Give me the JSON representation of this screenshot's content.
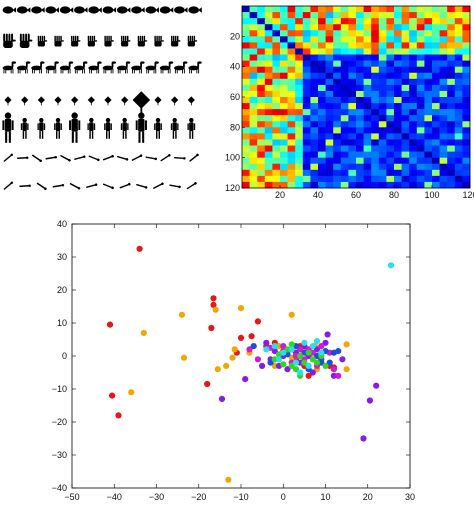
{
  "silhouettes": {
    "rows": [
      {
        "icon": "fish-icon",
        "color": "#000000"
      },
      {
        "icon": "hand-icon",
        "color": "#000000"
      },
      {
        "icon": "horse-icon",
        "color": "#000000"
      },
      {
        "icon": "leaf-icon",
        "color": "#000000"
      },
      {
        "icon": "person-icon",
        "color": "#000000"
      },
      {
        "icon": "stick-icon",
        "color": "#000000"
      },
      {
        "icon": "stick-icon",
        "color": "#000000"
      }
    ]
  },
  "chart_data": [
    {
      "type": "heatmap",
      "title": "",
      "xlabel": "",
      "ylabel": "",
      "size": 120,
      "xlim": [
        0,
        120
      ],
      "ylim": [
        0,
        120
      ],
      "xticks": [
        "20",
        "40",
        "60",
        "80",
        "100",
        "120"
      ],
      "yticks": [
        "20",
        "40",
        "60",
        "80",
        "100",
        "120"
      ],
      "colormap": "jet",
      "block_boundaries": [
        30
      ],
      "description_colors": {
        "low": "#00007f",
        "mid": "#00bfff",
        "high": "#ffff00"
      }
    },
    {
      "type": "scatter",
      "title": "",
      "xlabel": "",
      "ylabel": "",
      "xlim": [
        -50,
        30
      ],
      "ylim": [
        -40,
        40
      ],
      "xticks": [
        "−50",
        "−40",
        "−30",
        "−20",
        "−10",
        "0",
        "10",
        "20",
        "30"
      ],
      "yticks": [
        "−40",
        "−30",
        "−20",
        "−10",
        "0",
        "10",
        "20",
        "30",
        "40"
      ],
      "series": [
        {
          "color": "#e8161a",
          "points": [
            [
              -34,
              32.5
            ],
            [
              -41,
              9.5
            ],
            [
              -40.5,
              -12
            ],
            [
              -39,
              -18
            ],
            [
              -16.5,
              17.5
            ],
            [
              -16.5,
              15.5
            ],
            [
              -17,
              8.5
            ],
            [
              -18,
              -8.5
            ],
            [
              -10,
              5.5
            ],
            [
              -7.5,
              6
            ],
            [
              -4,
              3
            ],
            [
              -2,
              4
            ],
            [
              -11,
              1
            ],
            [
              -6,
              10.5
            ],
            [
              0,
              1.5
            ],
            [
              3,
              -1
            ],
            [
              5,
              -3
            ],
            [
              6,
              -6
            ],
            [
              11,
              -3
            ],
            [
              9,
              1
            ],
            [
              12,
              -3.5
            ],
            [
              4,
              3
            ]
          ]
        },
        {
          "color": "#f0a800",
          "points": [
            [
              -33,
              7
            ],
            [
              -36,
              -11
            ],
            [
              -24,
              12.5
            ],
            [
              -23.5,
              -0.5
            ],
            [
              -15.5,
              -4
            ],
            [
              -16,
              14
            ],
            [
              -12,
              -0.5
            ],
            [
              -11.5,
              2
            ],
            [
              -13.5,
              -3
            ],
            [
              -8,
              1
            ],
            [
              -2,
              -3
            ],
            [
              2,
              -0.5
            ],
            [
              -1,
              3
            ],
            [
              2,
              12.5
            ],
            [
              5,
              2
            ],
            [
              7.5,
              3
            ],
            [
              8,
              -4
            ],
            [
              15,
              3.5
            ],
            [
              15,
              -4
            ],
            [
              -10,
              14.5
            ],
            [
              -13,
              -37.5
            ]
          ]
        },
        {
          "color": "#8a1ae6",
          "points": [
            [
              -9,
              -7
            ],
            [
              -5,
              -3
            ],
            [
              -4,
              4
            ],
            [
              -3,
              -1
            ],
            [
              -2,
              1.5
            ],
            [
              -1,
              -3
            ],
            [
              0,
              0
            ],
            [
              1,
              -4
            ],
            [
              2,
              2
            ],
            [
              3,
              1
            ],
            [
              4,
              -2
            ],
            [
              5,
              3
            ],
            [
              6,
              0
            ],
            [
              7,
              -5
            ],
            [
              8,
              2
            ],
            [
              9,
              -1
            ],
            [
              10,
              4
            ],
            [
              10.5,
              6.5
            ],
            [
              12,
              -6
            ],
            [
              14,
              -1
            ],
            [
              22,
              -9
            ],
            [
              19,
              -25
            ],
            [
              20.5,
              -13.5
            ],
            [
              -14.5,
              -13
            ]
          ]
        },
        {
          "color": "#d21ad4",
          "points": [
            [
              -8,
              2
            ],
            [
              -6,
              -1
            ],
            [
              -3,
              2.5
            ],
            [
              0,
              3
            ],
            [
              2,
              -2
            ],
            [
              3,
              0
            ],
            [
              4,
              2
            ],
            [
              5,
              -1
            ],
            [
              6,
              2
            ],
            [
              7,
              1
            ],
            [
              8,
              -3
            ],
            [
              9,
              3
            ],
            [
              11,
              1
            ],
            [
              12,
              -4
            ],
            [
              13,
              -6
            ]
          ]
        },
        {
          "color": "#1a50d8",
          "points": [
            [
              -7,
              3
            ],
            [
              -3,
              -2
            ],
            [
              1,
              0.5
            ],
            [
              3,
              3
            ],
            [
              5,
              1
            ],
            [
              6,
              -4
            ],
            [
              8,
              0
            ],
            [
              9,
              -2
            ],
            [
              10,
              1.5
            ],
            [
              12,
              1
            ],
            [
              13,
              1.5
            ],
            [
              11,
              -2
            ]
          ]
        },
        {
          "color": "#33d424",
          "points": [
            [
              -2,
              -1
            ],
            [
              0,
              -2.5
            ],
            [
              1,
              2
            ],
            [
              2,
              -3
            ],
            [
              3,
              -4
            ],
            [
              4,
              0
            ],
            [
              5,
              -2
            ],
            [
              6,
              1
            ],
            [
              7,
              -1
            ],
            [
              8,
              -2
            ],
            [
              9,
              0
            ],
            [
              10,
              -3
            ],
            [
              -1,
              0.5
            ],
            [
              2,
              3.5
            ],
            [
              4,
              -6
            ]
          ]
        },
        {
          "color": "#28e0ea",
          "points": [
            [
              -4,
              2
            ],
            [
              -2,
              3
            ],
            [
              0,
              1
            ],
            [
              2,
              2
            ],
            [
              3,
              -2
            ],
            [
              5,
              4
            ],
            [
              7,
              3
            ],
            [
              8,
              4.5
            ],
            [
              9,
              1
            ],
            [
              4,
              -5
            ],
            [
              6,
              -3
            ],
            [
              -1,
              -1
            ],
            [
              25.5,
              27.5
            ]
          ]
        }
      ]
    }
  ]
}
